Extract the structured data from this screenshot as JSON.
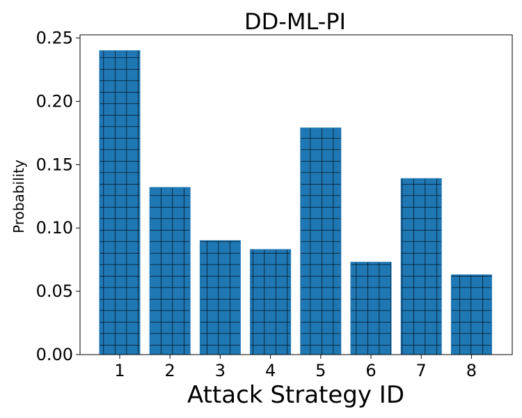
{
  "chart_data": {
    "type": "bar",
    "title": "DD-ML-PI",
    "xlabel": "Attack Strategy ID",
    "ylabel": "Probability",
    "categories": [
      "1",
      "2",
      "3",
      "4",
      "5",
      "6",
      "7",
      "8"
    ],
    "values": [
      0.24,
      0.132,
      0.09,
      0.083,
      0.179,
      0.073,
      0.139,
      0.063
    ],
    "yticks": [
      "0.00",
      "0.05",
      "0.10",
      "0.15",
      "0.20",
      "0.25"
    ],
    "ylim": [
      0,
      0.2525
    ],
    "bar_color": "#1f77b4",
    "hatch_color": "#000000",
    "hatch": "grid",
    "grid": false,
    "legend": "none"
  }
}
